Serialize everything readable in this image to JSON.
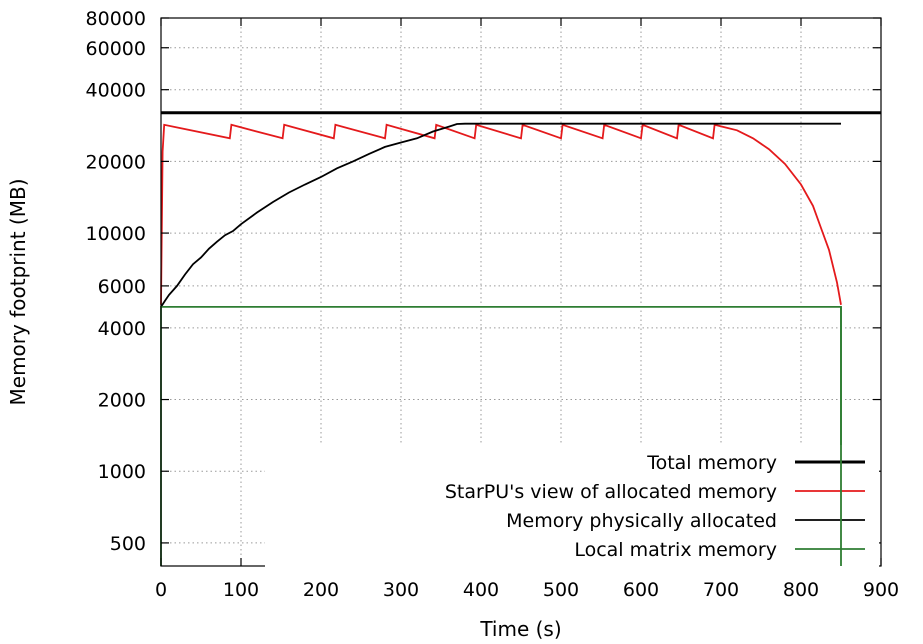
{
  "chart_data": {
    "type": "line",
    "xlabel": "Time (s)",
    "ylabel": "Memory footprint (MB)",
    "xlim": [
      0,
      900
    ],
    "ylim": [
      400,
      80000
    ],
    "yscale": "log",
    "grid": true,
    "legend_position": "bottom-right",
    "x_ticks": [
      0,
      100,
      200,
      300,
      400,
      500,
      600,
      700,
      800,
      900
    ],
    "y_ticks": [
      500,
      1000,
      2000,
      4000,
      6000,
      10000,
      20000,
      40000,
      60000,
      80000
    ],
    "series": [
      {
        "name": "Total memory",
        "color": "#000000",
        "width": 3,
        "points": [
          [
            0,
            32000
          ],
          [
            900,
            32000
          ]
        ]
      },
      {
        "name": "StarPU's view of allocated memory",
        "color": "#e41a1c",
        "width": 1.8,
        "points": [
          [
            0,
            5000
          ],
          [
            2,
            22000
          ],
          [
            4,
            28500
          ],
          [
            86,
            25000
          ],
          [
            88,
            28500
          ],
          [
            152,
            25000
          ],
          [
            154,
            28500
          ],
          [
            216,
            25000
          ],
          [
            218,
            28500
          ],
          [
            280,
            25000
          ],
          [
            282,
            28500
          ],
          [
            342,
            25000
          ],
          [
            344,
            28500
          ],
          [
            392,
            25000
          ],
          [
            394,
            28500
          ],
          [
            450,
            25000
          ],
          [
            452,
            28500
          ],
          [
            500,
            25000
          ],
          [
            502,
            28500
          ],
          [
            552,
            25000
          ],
          [
            554,
            28500
          ],
          [
            600,
            25000
          ],
          [
            602,
            28500
          ],
          [
            645,
            25000
          ],
          [
            647,
            28500
          ],
          [
            690,
            25000
          ],
          [
            692,
            28500
          ],
          [
            720,
            27000
          ],
          [
            740,
            25000
          ],
          [
            760,
            22500
          ],
          [
            780,
            19500
          ],
          [
            800,
            16000
          ],
          [
            815,
            13000
          ],
          [
            825,
            10500
          ],
          [
            835,
            8500
          ],
          [
            845,
            6200
          ],
          [
            850,
            5000
          ]
        ]
      },
      {
        "name": "Memory physically allocated",
        "color": "#000000",
        "width": 1.8,
        "points": [
          [
            0,
            4900
          ],
          [
            5,
            5200
          ],
          [
            10,
            5500
          ],
          [
            20,
            6000
          ],
          [
            30,
            6700
          ],
          [
            40,
            7400
          ],
          [
            50,
            7900
          ],
          [
            60,
            8600
          ],
          [
            70,
            9200
          ],
          [
            80,
            9800
          ],
          [
            90,
            10200
          ],
          [
            100,
            10900
          ],
          [
            120,
            12200
          ],
          [
            140,
            13500
          ],
          [
            160,
            14800
          ],
          [
            180,
            16000
          ],
          [
            200,
            17200
          ],
          [
            220,
            18700
          ],
          [
            240,
            20000
          ],
          [
            260,
            21500
          ],
          [
            280,
            23000
          ],
          [
            300,
            24000
          ],
          [
            320,
            25000
          ],
          [
            340,
            26700
          ],
          [
            360,
            28000
          ],
          [
            370,
            28700
          ],
          [
            380,
            28800
          ],
          [
            850,
            28800
          ]
        ]
      },
      {
        "name": "Local matrix memory",
        "color": "#2e7d32",
        "width": 1.8,
        "points": [
          [
            0,
            400
          ],
          [
            0,
            4900
          ],
          [
            850,
            4900
          ],
          [
            850,
            400
          ]
        ]
      }
    ]
  }
}
